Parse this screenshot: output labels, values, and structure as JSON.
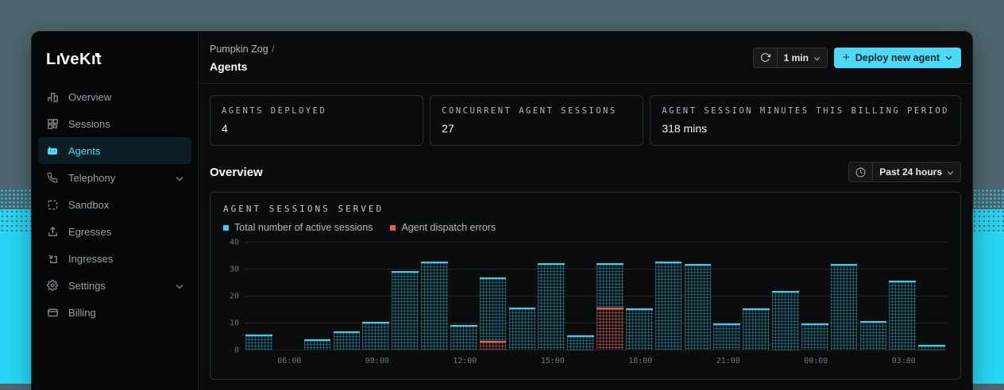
{
  "brand": {
    "logo_text": "LiveKit"
  },
  "colors": {
    "accent_cyan": "#4ED9F6",
    "series_sessions": "#3ACBEB",
    "series_errors": "#E2604F",
    "background_slate": "#4D6570",
    "background_cyan": "#28D5F2"
  },
  "sidebar": {
    "items": [
      {
        "label": "Overview",
        "icon": "bar-chart-icon",
        "active": false,
        "has_chevron": false
      },
      {
        "label": "Sessions",
        "icon": "grid-icon",
        "active": false,
        "has_chevron": false
      },
      {
        "label": "Agents",
        "icon": "robot-icon",
        "active": true,
        "has_chevron": false
      },
      {
        "label": "Telephony",
        "icon": "phone-icon",
        "active": false,
        "has_chevron": true
      },
      {
        "label": "Sandbox",
        "icon": "dashed-square-icon",
        "active": false,
        "has_chevron": false
      },
      {
        "label": "Egresses",
        "icon": "upload-icon",
        "active": false,
        "has_chevron": false
      },
      {
        "label": "Ingresses",
        "icon": "download-box-icon",
        "active": false,
        "has_chevron": false
      },
      {
        "label": "Settings",
        "icon": "gear-icon",
        "active": false,
        "has_chevron": true
      },
      {
        "label": "Billing",
        "icon": "credit-card-icon",
        "active": false,
        "has_chevron": false
      }
    ]
  },
  "header": {
    "breadcrumb_parent": "Pumpkin Zog",
    "breadcrumb_sep": "/",
    "title": "Agents",
    "refresh_interval": "1 min",
    "deploy_label": "Deploy new agent",
    "plus_sign": "+"
  },
  "stats": [
    {
      "label": "AGENTS DEPLOYED",
      "value": "4"
    },
    {
      "label": "CONCURRENT AGENT SESSIONS",
      "value": "27"
    },
    {
      "label": "AGENT SESSION MINUTES THIS BILLING PERIOD",
      "value": "318 mins"
    }
  ],
  "overview": {
    "title": "Overview",
    "time_range_label": "Past 24 hours"
  },
  "chart_data": {
    "type": "bar",
    "title": "AGENT SESSIONS SERVED",
    "ylim": [
      0,
      40
    ],
    "yticks": [
      0,
      10,
      20,
      30,
      40
    ],
    "grid": true,
    "legend_position": "top-left",
    "series": [
      {
        "name": "Total number of active sessions",
        "color": "#3ACBEB",
        "values": [
          6,
          0,
          4,
          7,
          10.5,
          29.5,
          33,
          9.5,
          27,
          16,
          32.5,
          5.5,
          32.5,
          15.5,
          33,
          32,
          10,
          15.5,
          22,
          10,
          32,
          11,
          26,
          2
        ]
      },
      {
        "name": "Agent dispatch errors",
        "color": "#E2604F",
        "values": [
          0,
          0,
          0,
          0,
          0,
          0,
          0,
          0,
          3.5,
          0,
          0,
          0,
          16,
          0,
          0,
          0,
          0,
          0,
          0,
          0,
          0,
          0,
          0,
          0
        ]
      }
    ],
    "x_ticks": [
      {
        "label": "06:00",
        "bar_index": 1
      },
      {
        "label": "09:00",
        "bar_index": 4
      },
      {
        "label": "12:00",
        "bar_index": 7
      },
      {
        "label": "15:00",
        "bar_index": 10
      },
      {
        "label": "18:00",
        "bar_index": 13
      },
      {
        "label": "21:00",
        "bar_index": 16
      },
      {
        "label": "00:00",
        "bar_index": 19
      },
      {
        "label": "03:00",
        "bar_index": 22
      }
    ]
  }
}
